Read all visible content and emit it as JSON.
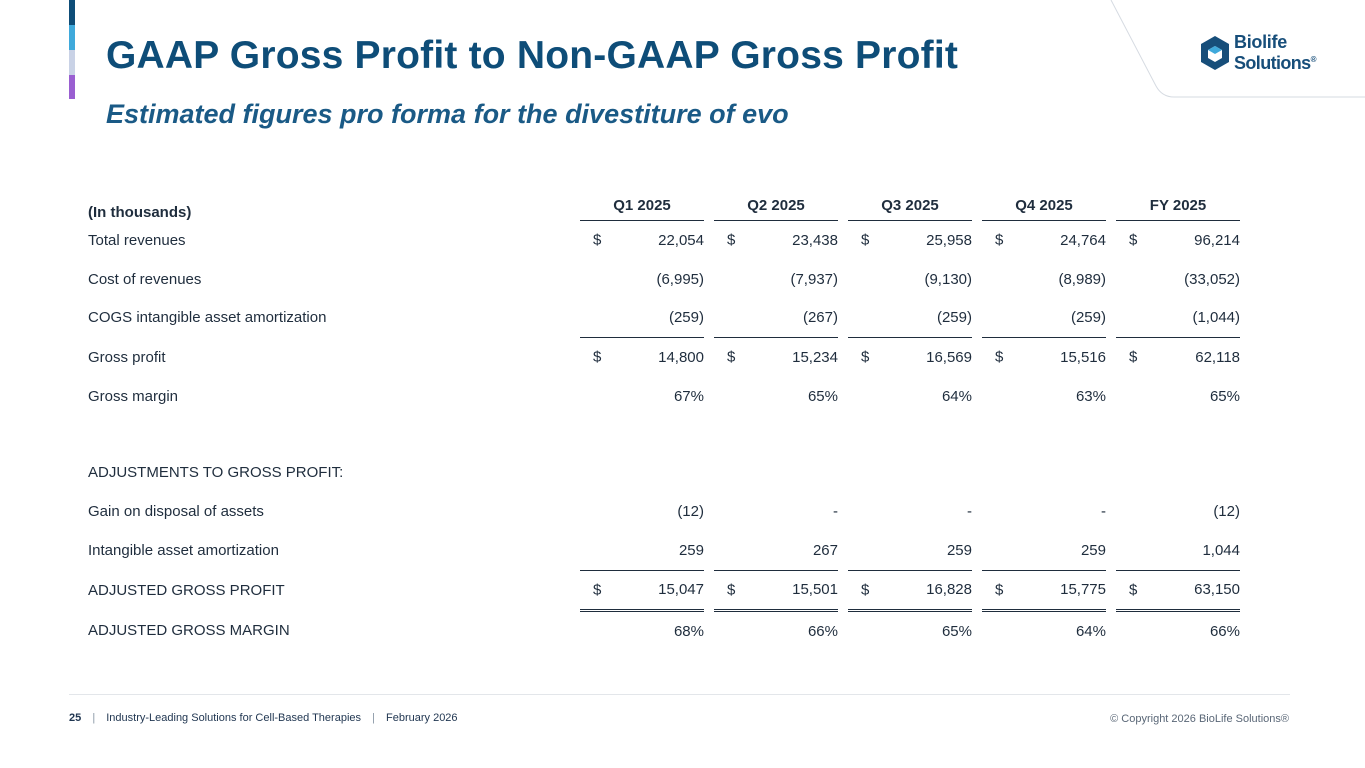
{
  "colors": {
    "accent_1": "#0e4d78",
    "accent_2": "#3fa9db",
    "accent_3": "#c9d2e6",
    "accent_4": "#9a5fd1",
    "title": "#0e4d78"
  },
  "header": {
    "title": "GAAP Gross Profit to Non-GAAP Gross Profit",
    "subtitle": "Estimated figures pro forma for the divestiture of evo"
  },
  "logo": {
    "line1": "Biolife",
    "line2": "Solutions",
    "reg": "®",
    "icon": "hexagon-cube-icon"
  },
  "table": {
    "unit_label": "(In thousands)",
    "columns": [
      "Q1 2025",
      "Q2 2025",
      "Q3 2025",
      "Q4 2025",
      "FY 2025"
    ],
    "rows": [
      {
        "label": "Total revenues",
        "currency": "$",
        "values": [
          "22,054",
          "23,438",
          "25,958",
          "24,764",
          "96,214"
        ]
      },
      {
        "label": "Cost of revenues",
        "values": [
          "(6,995)",
          "(7,937)",
          "(9,130)",
          "(8,989)",
          "(33,052)"
        ]
      },
      {
        "label": "COGS intangible asset amortization",
        "values": [
          "(259)",
          "(267)",
          "(259)",
          "(259)",
          "(1,044)"
        ]
      },
      {
        "label": "Gross profit",
        "currency": "$",
        "values": [
          "14,800",
          "15,234",
          "16,569",
          "15,516",
          "62,118"
        ]
      },
      {
        "label": "Gross margin",
        "values": [
          "67%",
          "65%",
          "64%",
          "63%",
          "65%"
        ]
      },
      {
        "label": "ADJUSTMENTS TO GROSS PROFIT:"
      },
      {
        "label": "Gain on disposal of assets",
        "values": [
          "(12)",
          "-",
          "-",
          "-",
          "(12)"
        ]
      },
      {
        "label": "Intangible asset amortization",
        "values": [
          "259",
          "267",
          "259",
          "259",
          "1,044"
        ]
      },
      {
        "label": "ADJUSTED GROSS PROFIT",
        "currency": "$",
        "values": [
          "15,047",
          "15,501",
          "16,828",
          "15,775",
          "63,150"
        ]
      },
      {
        "label": "ADJUSTED GROSS MARGIN",
        "values": [
          "68%",
          "66%",
          "65%",
          "64%",
          "66%"
        ]
      }
    ]
  },
  "footer": {
    "page_number": "25",
    "separator": "|",
    "tagline": "Industry-Leading Solutions for Cell-Based Therapies",
    "date": "February 2026",
    "copyright": "© Copyright 2026 BioLife Solutions®"
  }
}
